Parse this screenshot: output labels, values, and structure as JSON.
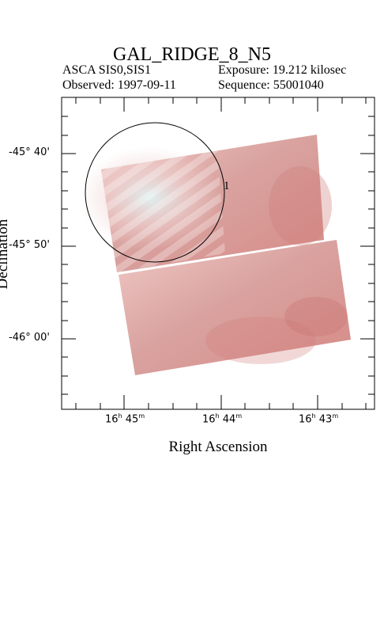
{
  "title": "GAL_RIDGE_8_N5",
  "header": {
    "instrument": "ASCA SIS0,SIS1",
    "exposure": "Exposure: 19.212 kilosec",
    "observed": "Observed: 1997-09-11",
    "sequence": "Sequence: 55001040"
  },
  "axes": {
    "x_label": "Right Ascension",
    "y_label": "Declination",
    "x_ticks": [
      {
        "h": "16",
        "m": "45"
      },
      {
        "h": "16",
        "m": "44"
      },
      {
        "h": "16",
        "m": "43"
      }
    ],
    "y_ticks": [
      "-45° 40'",
      "-45° 50'",
      "-46° 00'"
    ]
  },
  "region": {
    "label": "1"
  },
  "colors": {
    "image_base": "#d9928f",
    "image_highlight": "#d8eef0",
    "frame": "#000000"
  }
}
